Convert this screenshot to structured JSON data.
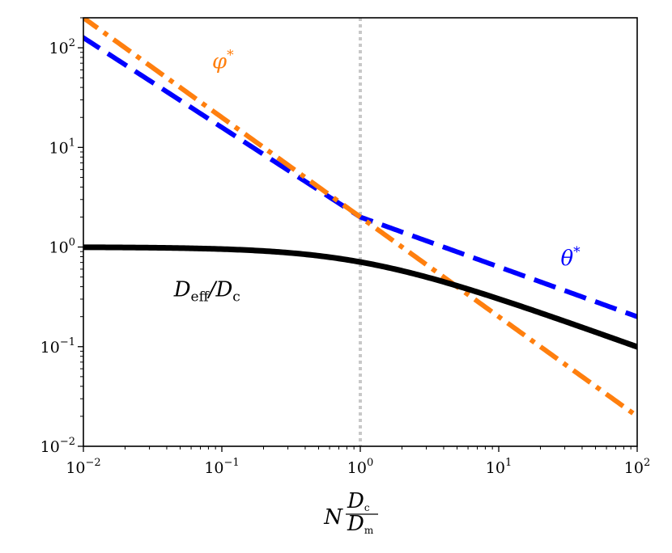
{
  "chart_data": {
    "type": "line",
    "xscale": "log",
    "yscale": "log",
    "xlim": [
      0.01,
      100
    ],
    "ylim": [
      0.01,
      200
    ],
    "xlabel": {
      "base": "N",
      "numerator": "D",
      "numerator_sub": "c",
      "denominator": "D",
      "denominator_sub": "m"
    },
    "ylabel": "",
    "title": "",
    "x_ticks": [
      {
        "base": "10",
        "exp": "−2",
        "value": 0.01
      },
      {
        "base": "10",
        "exp": "−1",
        "value": 0.1
      },
      {
        "base": "10",
        "exp": "0",
        "value": 1
      },
      {
        "base": "10",
        "exp": "1",
        "value": 10
      },
      {
        "base": "10",
        "exp": "2",
        "value": 100
      }
    ],
    "y_ticks": [
      {
        "base": "10",
        "exp": "−2",
        "value": 0.01
      },
      {
        "base": "10",
        "exp": "−1",
        "value": 0.1
      },
      {
        "base": "10",
        "exp": "0",
        "value": 1
      },
      {
        "base": "10",
        "exp": "1",
        "value": 10
      },
      {
        "base": "10",
        "exp": "2",
        "value": 100
      }
    ],
    "vertical_reference": {
      "x": 1,
      "color": "#c8c8c8",
      "style": "dotted"
    },
    "series": [
      {
        "name": "D_eff/D_c",
        "label_main": "D",
        "label_sub": "eff",
        "label_tail": "/D",
        "label_tail_sub": "c",
        "color": "#000000",
        "style": "solid",
        "formula": "1/(1+x)^(1/2)",
        "label_at": [
          0.045,
          0.32
        ]
      },
      {
        "name": "phi*",
        "label_main": "φ",
        "label_sup": "*",
        "color": "#ff7f0e",
        "style": "dashdot",
        "formula": "2/x",
        "label_at": [
          0.085,
          62
        ]
      },
      {
        "name": "theta*",
        "label_main": "θ",
        "label_sup": "*",
        "color": "#0000ff",
        "style": "dashed",
        "formula": "2/x^(1/2) at x>=1, steeper below",
        "label_at": [
          28,
          0.66
        ]
      }
    ]
  }
}
